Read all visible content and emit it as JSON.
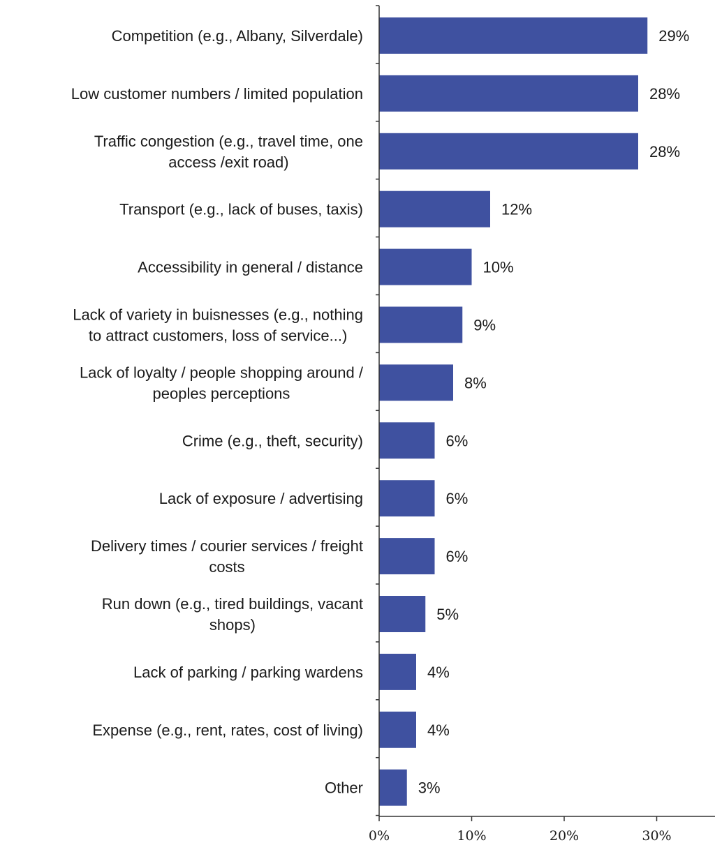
{
  "chart_data": {
    "type": "bar",
    "orientation": "horizontal",
    "categories": [
      "Competition (e.g., Albany, Silverdale)",
      "Low customer numbers / limited population",
      "Traffic congestion (e.g., travel time, one access /exit road)",
      "Transport (e.g., lack of buses, taxis)",
      "Accessibility in general / distance",
      "Lack of variety in buisnesses (e.g., nothing to attract customers, loss of service...)",
      "Lack of loyalty / people shopping around / peoples perceptions",
      "Crime (e.g., theft, security)",
      "Lack of exposure / advertising",
      "Delivery times / courier services / freight costs",
      "Run down (e.g., tired buildings, vacant shops)",
      "Lack of parking / parking wardens",
      "Expense (e.g., rent, rates, cost of living)",
      "Other"
    ],
    "label_lines": [
      [
        "Competition (e.g., Albany, Silverdale)"
      ],
      [
        "Low customer numbers / limited population"
      ],
      [
        "Traffic congestion (e.g., travel time, one",
        "access /exit road)"
      ],
      [
        "Transport (e.g., lack of buses, taxis)"
      ],
      [
        "Accessibility in general / distance"
      ],
      [
        "Lack of variety in buisnesses (e.g., nothing",
        "to attract customers, loss of service...)"
      ],
      [
        "Lack of loyalty / people shopping around /",
        "peoples perceptions"
      ],
      [
        "Crime (e.g., theft, security)"
      ],
      [
        "Lack of exposure / advertising"
      ],
      [
        "Delivery times / courier services / freight",
        "costs"
      ],
      [
        "Run down (e.g., tired buildings, vacant",
        "shops)"
      ],
      [
        "Lack of parking / parking wardens"
      ],
      [
        "Expense (e.g., rent, rates, cost of living)"
      ],
      [
        "Other"
      ]
    ],
    "values": [
      29,
      28,
      28,
      12,
      10,
      9,
      8,
      6,
      6,
      6,
      5,
      4,
      4,
      3
    ],
    "value_labels": [
      "29%",
      "28%",
      "28%",
      "12%",
      "10%",
      "9%",
      "8%",
      "6%",
      "6%",
      "6%",
      "5%",
      "4%",
      "4%",
      "3%"
    ],
    "xlim": [
      0,
      35
    ],
    "xticks": [
      0,
      10,
      20,
      30
    ],
    "xtick_labels": [
      "0%",
      "10%",
      "20%",
      "30%"
    ],
    "title": "",
    "xlabel": "",
    "ylabel": "",
    "grid": false,
    "legend": "none",
    "bar_color": "#3f51a0",
    "axis_color": "#333333"
  }
}
